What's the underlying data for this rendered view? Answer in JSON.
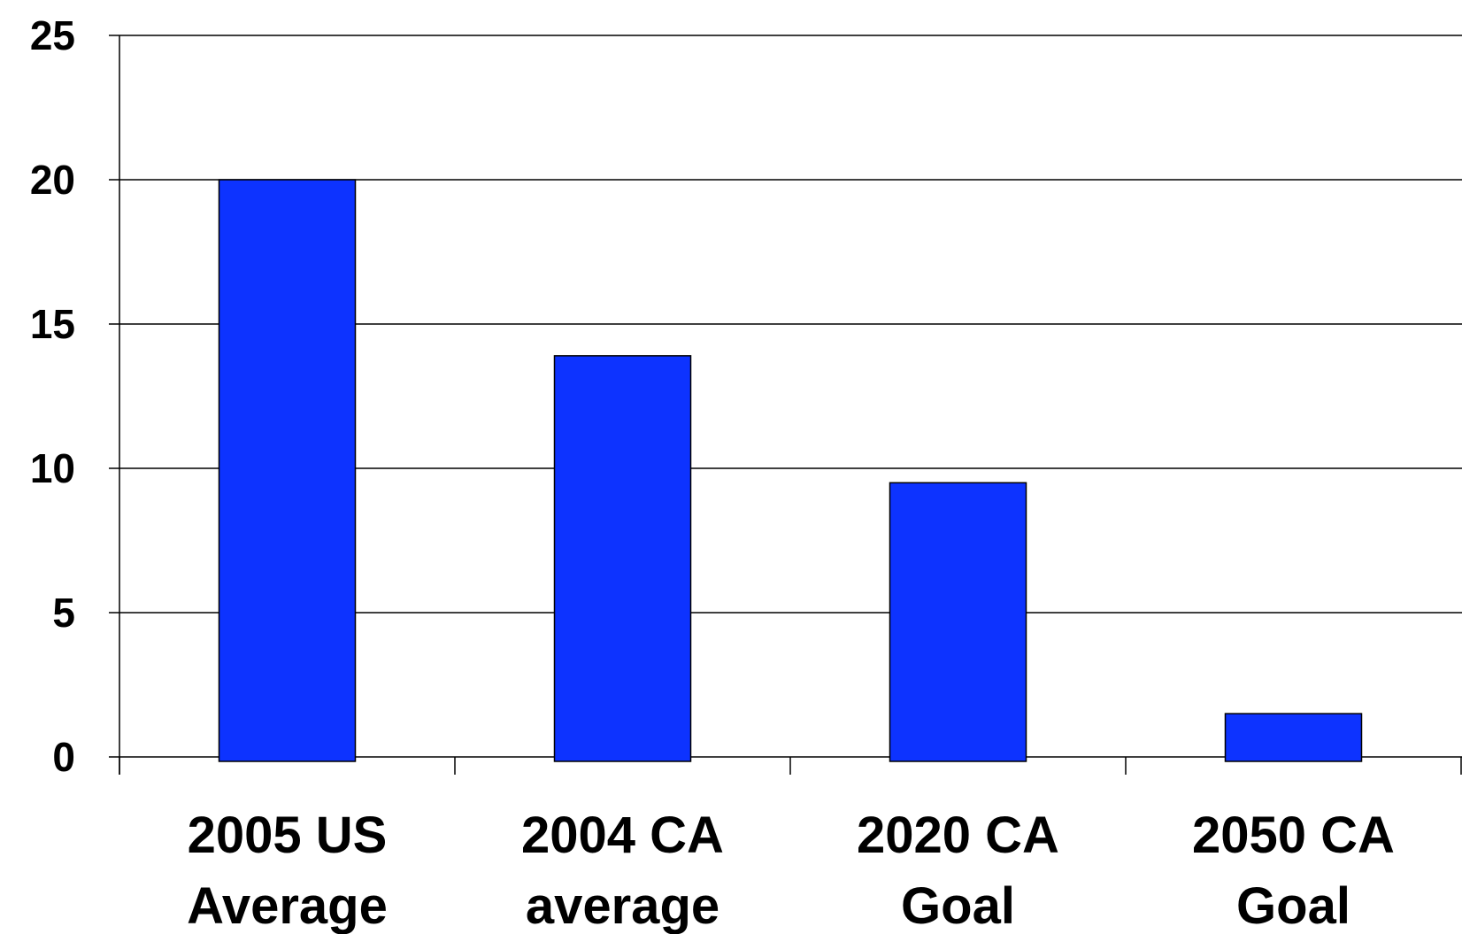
{
  "chart_data": {
    "type": "bar",
    "title": "",
    "xlabel": "",
    "ylabel": "",
    "categories": [
      [
        "2005 US",
        "Average"
      ],
      [
        "2004 CA",
        "average"
      ],
      [
        "2020 CA",
        "Goal"
      ],
      [
        "2050 CA",
        "Goal"
      ]
    ],
    "values": [
      20,
      13.9,
      9.5,
      1.5
    ],
    "ylim": [
      0,
      25
    ],
    "yticks": [
      "0",
      "5",
      "10",
      "15",
      "20",
      "25"
    ],
    "grid": true,
    "legend": "none",
    "bar_color": "#0d33ff"
  }
}
